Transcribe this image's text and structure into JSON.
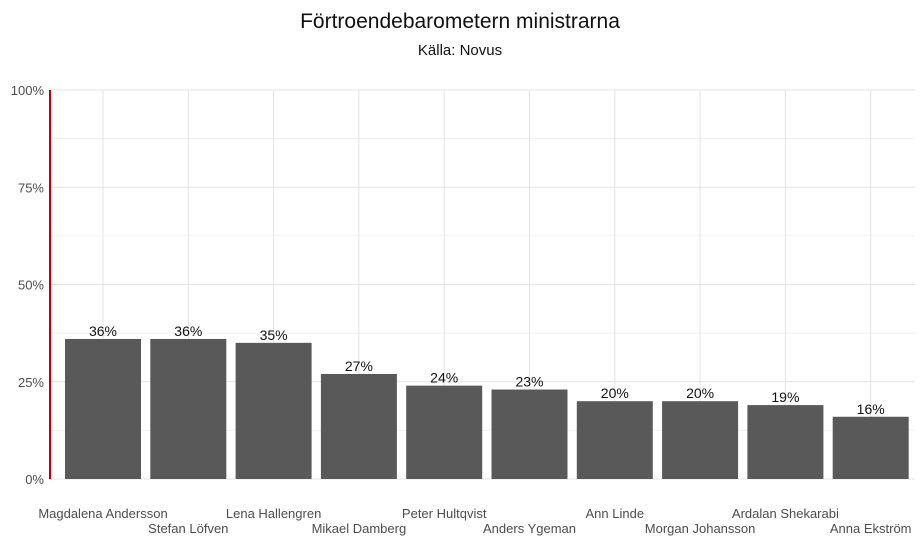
{
  "chart_data": {
    "type": "bar",
    "title": "Förtroendebarometern ministrarna",
    "subtitle": "Källa: Novus",
    "xlabel": "",
    "ylabel": "",
    "ylim": [
      0,
      100
    ],
    "yticks": [
      0,
      25,
      50,
      75,
      100
    ],
    "ytick_labels": [
      "0%",
      "25%",
      "50%",
      "75%",
      "100%"
    ],
    "grid": true,
    "categories": [
      "Magdalena Andersson",
      "Stefan Löfven",
      "Lena Hallengren",
      "Mikael Damberg",
      "Peter Hultqvist",
      "Anders Ygeman",
      "Ann Linde",
      "Morgan Johansson",
      "Ardalan Shekarabi",
      "Anna Ekström"
    ],
    "values": [
      36,
      36,
      35,
      27,
      24,
      23,
      20,
      20,
      19,
      16
    ],
    "value_labels": [
      "36%",
      "36%",
      "35%",
      "27%",
      "24%",
      "23%",
      "20%",
      "20%",
      "19%",
      "16%"
    ],
    "colors": {
      "bar": "#595959",
      "axis": "#c00000",
      "grid_major": "#e3e3e3",
      "grid_minor": "#f1f1f1"
    }
  }
}
